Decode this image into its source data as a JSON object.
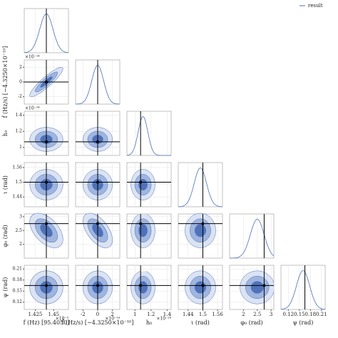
{
  "chart_data": {
    "type": "corner",
    "legend": "result",
    "line_color": "#4a72b8",
    "truth_color": "#000000",
    "fills": [
      "#dbe3f3",
      "#9fb5df",
      "#4f72b9"
    ],
    "grid": true,
    "parameters": [
      {
        "label": "f (Hz) [95.4050]",
        "offset": "×10⁻⁵",
        "lim": [
          1.41,
          1.47
        ],
        "ticks": [
          1.425,
          1.45
        ],
        "truth": 1.44,
        "mean": 1.44,
        "std": 0.009
      },
      {
        "label": "ḟ (Hz/s) [−4.3250×10⁻¹⁰]",
        "offset": "×10⁻¹⁴",
        "lim": [
          -3,
          3
        ],
        "ticks": [
          -2,
          0,
          2
        ],
        "truth": 0,
        "mean": 0,
        "std": 0.8
      },
      {
        "label": "h₀",
        "offset": "×10⁻²⁴",
        "lim": [
          0.9,
          1.45
        ],
        "ticks": [
          1.0,
          1.2,
          1.4
        ],
        "truth": 1.07,
        "mean": 1.1,
        "std": 0.06
      },
      {
        "label": "ι (rad)",
        "lim": [
          1.4,
          1.58
        ],
        "ticks": [
          1.44,
          1.5,
          1.56
        ],
        "truth": 1.5,
        "mean": 1.49,
        "std": 0.025
      },
      {
        "label": "φ₀ (rad)",
        "lim": [
          1.5,
          3.1
        ],
        "ticks": [
          2.0,
          2.5,
          3.0
        ],
        "truth": 2.75,
        "mean": 2.5,
        "std": 0.25
      },
      {
        "label": "ψ (rad)",
        "lim": [
          0.1,
          0.22
        ],
        "ticks": [
          0.12,
          0.15,
          0.18,
          0.21
        ],
        "truth": 0.165,
        "mean": 0.16,
        "std": 0.018
      }
    ],
    "correlations": [
      {
        "pair": [
          1,
          0
        ],
        "r": 0.9
      },
      {
        "pair": [
          2,
          0
        ],
        "r": 0
      },
      {
        "pair": [
          2,
          1
        ],
        "r": 0
      },
      {
        "pair": [
          3,
          0
        ],
        "r": 0
      },
      {
        "pair": [
          3,
          1
        ],
        "r": 0
      },
      {
        "pair": [
          3,
          2
        ],
        "r": 0
      },
      {
        "pair": [
          4,
          0
        ],
        "r": -0.5
      },
      {
        "pair": [
          4,
          1
        ],
        "r": -0.55
      },
      {
        "pair": [
          4,
          2
        ],
        "r": 0
      },
      {
        "pair": [
          4,
          3
        ],
        "r": 0
      },
      {
        "pair": [
          5,
          0
        ],
        "r": 0
      },
      {
        "pair": [
          5,
          1
        ],
        "r": 0
      },
      {
        "pair": [
          5,
          2
        ],
        "r": 0
      },
      {
        "pair": [
          5,
          3
        ],
        "r": 0
      },
      {
        "pair": [
          5,
          4
        ],
        "r": 0
      }
    ]
  }
}
